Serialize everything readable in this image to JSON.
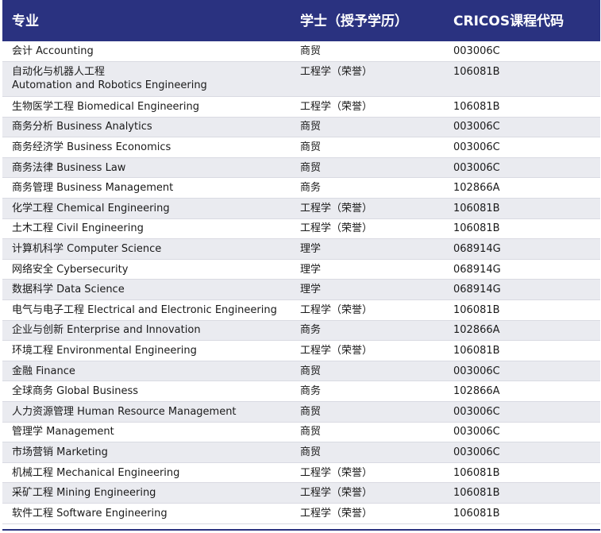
{
  "headers": {
    "major": "专业",
    "degree": "学士（授予学历）",
    "cricos": "CRICOS课程代码"
  },
  "rows": [
    {
      "major": "会计 Accounting",
      "degree": "商贸",
      "code": "003006C"
    },
    {
      "major": "自动化与机器人工程",
      "major_line2": "Automation and Robotics Engineering",
      "degree": "工程学（荣誉）",
      "code": "106081B"
    },
    {
      "major": "生物医学工程 Biomedical Engineering",
      "degree": "工程学（荣誉）",
      "code": "106081B"
    },
    {
      "major": "商务分析 Business Analytics",
      "degree": "商贸",
      "code": "003006C"
    },
    {
      "major": "商务经济学 Business Economics",
      "degree": "商贸",
      "code": "003006C"
    },
    {
      "major": "商务法律 Business Law",
      "degree": "商贸",
      "code": "003006C"
    },
    {
      "major": "商务管理 Business Management",
      "degree": "商务",
      "code": "102866A"
    },
    {
      "major": "化学工程 Chemical Engineering",
      "degree": "工程学（荣誉）",
      "code": "106081B"
    },
    {
      "major": "土木工程 Civil Engineering",
      "degree": "工程学（荣誉）",
      "code": "106081B"
    },
    {
      "major": "计算机科学 Computer Science",
      "degree": "理学",
      "code": "068914G"
    },
    {
      "major": "网络安全 Cybersecurity",
      "degree": "理学",
      "code": "068914G"
    },
    {
      "major": "数据科学 Data Science",
      "degree": "理学",
      "code": "068914G"
    },
    {
      "major": "电气与电子工程 Electrical and Electronic Engineering",
      "degree": "工程学（荣誉）",
      "code": "106081B"
    },
    {
      "major": "企业与创新 Enterprise and Innovation",
      "degree": "商务",
      "code": "102866A"
    },
    {
      "major": "环境工程 Environmental Engineering",
      "degree": "工程学（荣誉）",
      "code": "106081B"
    },
    {
      "major": "金融 Finance",
      "degree": "商贸",
      "code": "003006C"
    },
    {
      "major": "全球商务 Global Business",
      "degree": "商务",
      "code": "102866A"
    },
    {
      "major": "人力资源管理 Human Resource Management",
      "degree": "商贸",
      "code": "003006C"
    },
    {
      "major": "管理学 Management",
      "degree": "商贸",
      "code": "003006C"
    },
    {
      "major": "市场营销 Marketing",
      "degree": "商贸",
      "code": "003006C"
    },
    {
      "major": "机械工程 Mechanical Engineering",
      "degree": "工程学（荣誉）",
      "code": "106081B"
    },
    {
      "major": "采矿工程 Mining Engineering",
      "degree": "工程学（荣誉）",
      "code": "106081B"
    },
    {
      "major": "软件工程 Software Engineering",
      "degree": "工程学（荣誉）",
      "code": "106081B"
    }
  ],
  "colors": {
    "header_bg": "#2a3280",
    "stripe": "#eaebf0"
  }
}
